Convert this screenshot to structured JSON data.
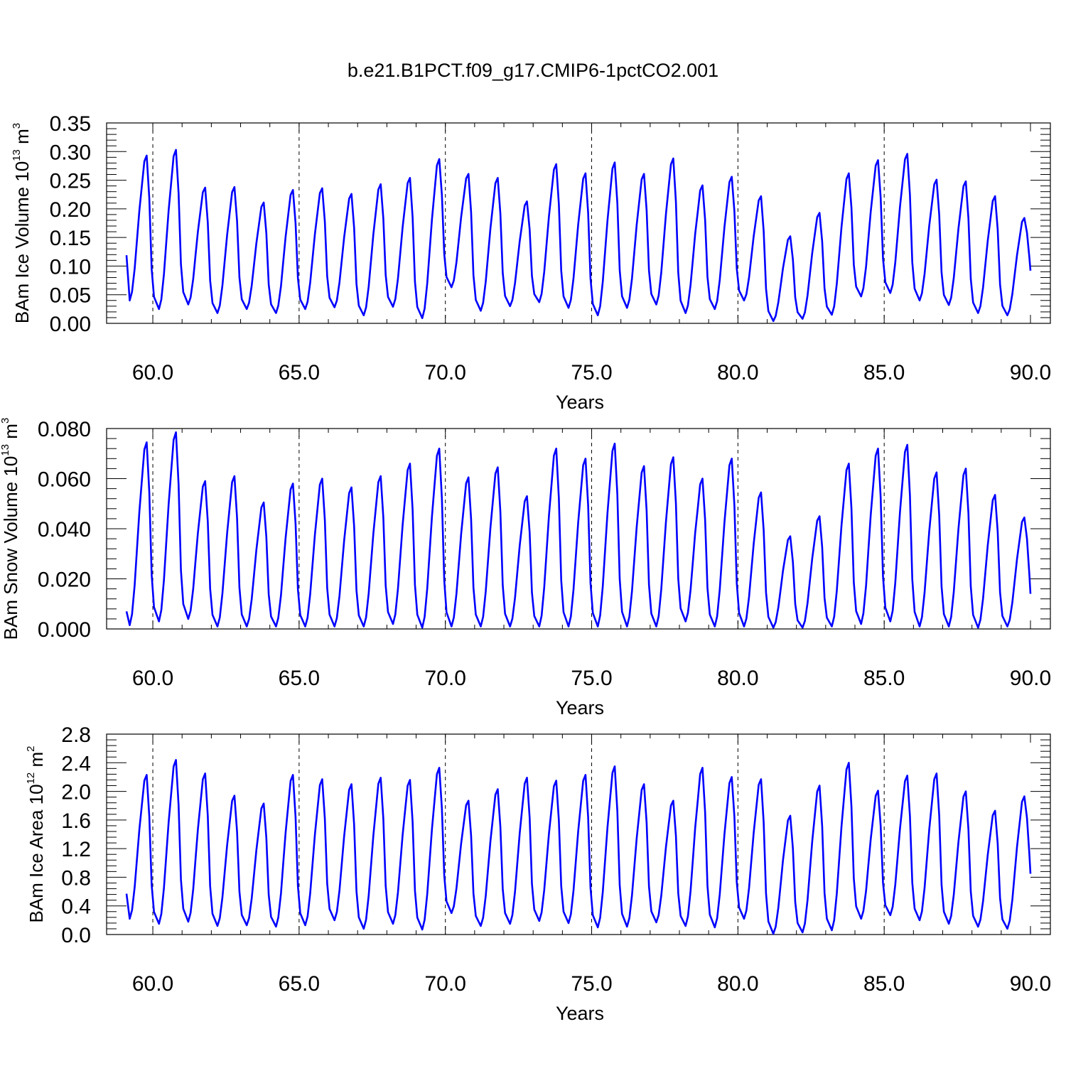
{
  "chart_data": [
    {
      "type": "line",
      "title": "b.e21.B1PCT.f09_g17.CMIP6-1pctCO2.001",
      "ylabel": "BAm Ice Volume 10",
      "yexp": "13",
      "yunit": " m",
      "yunit_sup": "3",
      "xlabel": "Years",
      "xlim": [
        59.1,
        90.0
      ],
      "ylim": [
        0.0,
        0.35
      ],
      "xticks": [
        "60.0",
        "65.0",
        "70.0",
        "75.0",
        "80.0",
        "85.0",
        "90.0"
      ],
      "yticks": [
        "0.00",
        "0.05",
        "0.10",
        "0.15",
        "0.20",
        "0.25",
        "0.30",
        "0.35"
      ],
      "grid": "vertical dashed lines at major x ticks",
      "series": [
        {
          "color": "#0000ff",
          "peaks": [
            0.293,
            0.303,
            0.237,
            0.238,
            0.211,
            0.233,
            0.236,
            0.226,
            0.243,
            0.254,
            0.287,
            0.261,
            0.254,
            0.213,
            0.278,
            0.262,
            0.281,
            0.261,
            0.288,
            0.241,
            0.256,
            0.222,
            0.152,
            0.193,
            0.262,
            0.285,
            0.296,
            0.251,
            0.248,
            0.222,
            0.184
          ],
          "troughs": [
            0.04,
            0.025,
            0.033,
            0.018,
            0.025,
            0.018,
            0.025,
            0.028,
            0.014,
            0.029,
            0.009,
            0.063,
            0.022,
            0.03,
            0.037,
            0.027,
            0.014,
            0.027,
            0.033,
            0.018,
            0.025,
            0.04,
            0.004,
            0.008,
            0.015,
            0.047,
            0.053,
            0.04,
            0.032,
            0.018,
            0.014
          ],
          "start": 0.119,
          "end": 0.092
        }
      ]
    },
    {
      "type": "line",
      "ylabel": "BAm Snow Volume 10",
      "yexp": "13",
      "yunit": " m",
      "yunit_sup": "3",
      "xlabel": "Years",
      "xlim": [
        59.1,
        90.0
      ],
      "ylim": [
        0.0,
        0.08
      ],
      "xticks": [
        "60.0",
        "65.0",
        "70.0",
        "75.0",
        "80.0",
        "85.0",
        "90.0"
      ],
      "yticks": [
        "0.000",
        "0.020",
        "0.040",
        "0.060",
        "0.080"
      ],
      "grid": "vertical dashed lines at major x ticks",
      "series": [
        {
          "color": "#0000ff",
          "peaks": [
            0.0745,
            0.0785,
            0.059,
            0.061,
            0.0505,
            0.058,
            0.06,
            0.0565,
            0.061,
            0.066,
            0.072,
            0.0605,
            0.0645,
            0.053,
            0.072,
            0.068,
            0.074,
            0.065,
            0.0685,
            0.06,
            0.068,
            0.0545,
            0.037,
            0.045,
            0.066,
            0.072,
            0.0735,
            0.0625,
            0.064,
            0.0535,
            0.0445
          ],
          "troughs": [
            0.0015,
            0.003,
            0.004,
            0.001,
            0.001,
            0.001,
            0.001,
            0.001,
            0.001,
            0.002,
            0.0005,
            0.001,
            0.001,
            0.001,
            0.001,
            0.001,
            0.001,
            0.001,
            0.001,
            0.003,
            0.001,
            0.001,
            0.0005,
            0.0005,
            0.001,
            0.002,
            0.003,
            0.001,
            0.001,
            0.0005,
            0.001
          ],
          "start": 0.007,
          "end": 0.014
        }
      ]
    },
    {
      "type": "line",
      "ylabel": "BAm Ice Area 10",
      "yexp": "12",
      "yunit": " m",
      "yunit_sup": "2",
      "xlabel": "Years",
      "xlim": [
        59.1,
        90.0
      ],
      "ylim": [
        0.0,
        2.8
      ],
      "xticks": [
        "60.0",
        "65.0",
        "70.0",
        "75.0",
        "80.0",
        "85.0",
        "90.0"
      ],
      "yticks": [
        "0.0",
        "0.4",
        "0.8",
        "1.2",
        "1.6",
        "2.0",
        "2.4",
        "2.8"
      ],
      "grid": "vertical dashed lines at major x ticks",
      "series": [
        {
          "color": "#0000ff",
          "peaks": [
            2.23,
            2.44,
            2.25,
            1.94,
            1.83,
            2.23,
            2.17,
            2.1,
            2.19,
            2.16,
            2.33,
            1.87,
            2.03,
            2.19,
            2.15,
            2.23,
            2.35,
            2.1,
            1.87,
            2.33,
            2.2,
            2.17,
            1.66,
            2.08,
            2.4,
            2.01,
            2.22,
            2.25,
            2.0,
            1.73,
            1.93
          ],
          "troughs": [
            0.22,
            0.15,
            0.18,
            0.12,
            0.13,
            0.11,
            0.13,
            0.2,
            0.08,
            0.15,
            0.07,
            0.3,
            0.12,
            0.15,
            0.19,
            0.16,
            0.1,
            0.11,
            0.17,
            0.12,
            0.1,
            0.22,
            0.01,
            0.03,
            0.06,
            0.22,
            0.27,
            0.2,
            0.15,
            0.11,
            0.08
          ],
          "start": 0.57,
          "end": 0.85
        }
      ]
    }
  ]
}
